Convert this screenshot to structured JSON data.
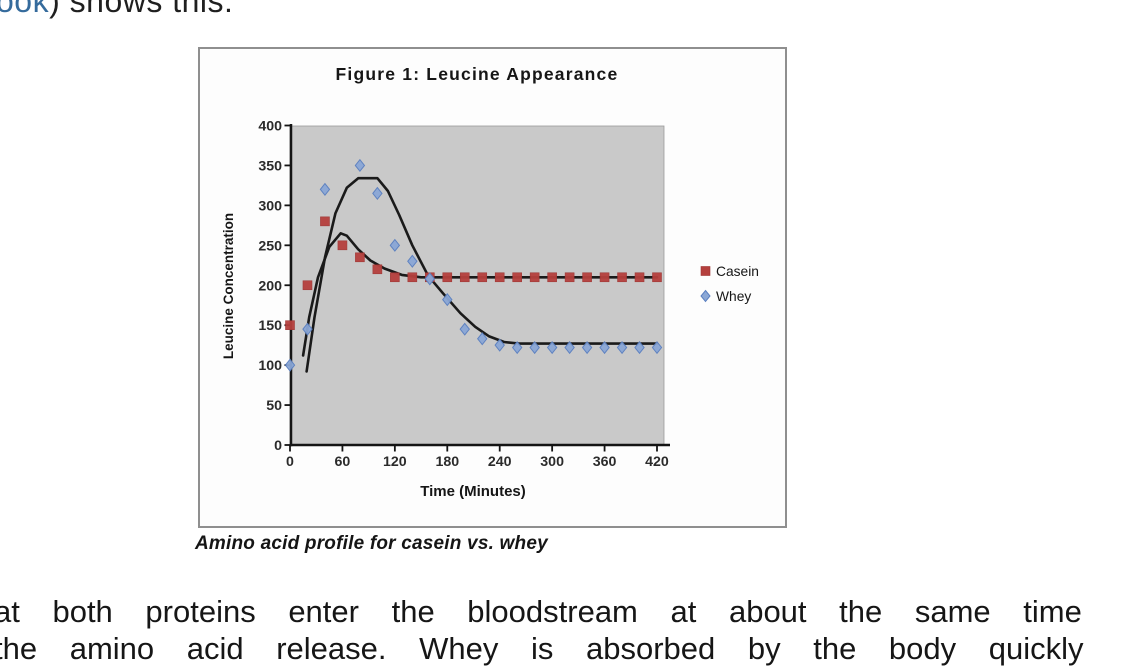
{
  "page": {
    "top_line": {
      "link_text": "ook",
      "rest_text": ") shows this:"
    },
    "body_text": {
      "line1": "at both proteins enter the bloodstream at about the same time",
      "line2": "the amino acid release. Whey is absorbed by the body quickly"
    },
    "colors": {
      "link": "#356b9c",
      "text": "#161616"
    }
  },
  "figure": {
    "caption": "Amino acid profile for casein vs. whey"
  },
  "chart_data": {
    "type": "scatter",
    "title": "Figure 1: Leucine Appearance",
    "xlabel": "Time (Minutes)",
    "ylabel": "Leucine Concentration",
    "xlim": [
      0,
      420
    ],
    "ylim": [
      0,
      400
    ],
    "x_ticks": [
      0,
      60,
      120,
      180,
      240,
      300,
      360,
      420
    ],
    "y_ticks": [
      0,
      50,
      100,
      150,
      200,
      250,
      300,
      350,
      400
    ],
    "grid": false,
    "legend_position": "right-outside",
    "plot_bg_color": "#c9c9c9",
    "axis_color": "#141414",
    "series": [
      {
        "name": "Casein",
        "marker": "square",
        "color": "#b5403d",
        "stroke": "#9e3432",
        "points": [
          [
            0,
            150
          ],
          [
            20,
            200
          ],
          [
            40,
            280
          ],
          [
            60,
            250
          ],
          [
            80,
            235
          ],
          [
            100,
            220
          ],
          [
            120,
            210
          ],
          [
            140,
            210
          ],
          [
            160,
            210
          ],
          [
            180,
            210
          ],
          [
            200,
            210
          ],
          [
            220,
            210
          ],
          [
            240,
            210
          ],
          [
            260,
            210
          ],
          [
            280,
            210
          ],
          [
            300,
            210
          ],
          [
            320,
            210
          ],
          [
            340,
            210
          ],
          [
            360,
            210
          ],
          [
            380,
            210
          ],
          [
            400,
            210
          ],
          [
            420,
            210
          ]
        ]
      },
      {
        "name": "Whey",
        "marker": "diamond",
        "color": "#8aa7d6",
        "stroke": "#5a7fc0",
        "points": [
          [
            0,
            100
          ],
          [
            20,
            145
          ],
          [
            40,
            320
          ],
          [
            80,
            350
          ],
          [
            100,
            315
          ],
          [
            120,
            250
          ],
          [
            140,
            230
          ],
          [
            160,
            208
          ],
          [
            180,
            182
          ],
          [
            200,
            145
          ],
          [
            220,
            133
          ],
          [
            240,
            125
          ],
          [
            260,
            122
          ],
          [
            280,
            122
          ],
          [
            300,
            122
          ],
          [
            320,
            122
          ],
          [
            340,
            122
          ],
          [
            360,
            122
          ],
          [
            380,
            122
          ],
          [
            400,
            122
          ],
          [
            420,
            122
          ]
        ]
      }
    ],
    "trend_lines": [
      {
        "name": "Casein trend",
        "color": "#1a1a1a",
        "points": [
          [
            15,
            112
          ],
          [
            22,
            160
          ],
          [
            32,
            210
          ],
          [
            45,
            248
          ],
          [
            58,
            265
          ],
          [
            65,
            262
          ],
          [
            78,
            245
          ],
          [
            92,
            231
          ],
          [
            108,
            221
          ],
          [
            128,
            213
          ],
          [
            150,
            210
          ],
          [
            420,
            210
          ]
        ]
      },
      {
        "name": "Whey trend",
        "color": "#1a1a1a",
        "points": [
          [
            19,
            92
          ],
          [
            28,
            160
          ],
          [
            40,
            235
          ],
          [
            52,
            290
          ],
          [
            65,
            322
          ],
          [
            78,
            334
          ],
          [
            100,
            334
          ],
          [
            112,
            318
          ],
          [
            125,
            288
          ],
          [
            140,
            250
          ],
          [
            158,
            212
          ],
          [
            175,
            190
          ],
          [
            195,
            165
          ],
          [
            212,
            148
          ],
          [
            228,
            136
          ],
          [
            245,
            129
          ],
          [
            262,
            127
          ],
          [
            420,
            127
          ]
        ]
      }
    ]
  }
}
